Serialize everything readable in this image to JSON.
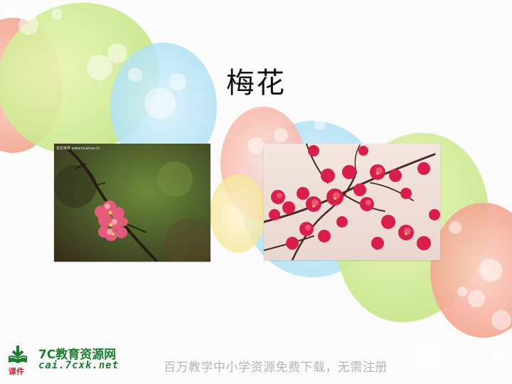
{
  "slide": {
    "title": "梅花"
  },
  "photos": {
    "left": {
      "stamp": "花花世界 www.huahua.cn"
    },
    "right": {}
  },
  "footer": {
    "brand_name": "7C教育资源网",
    "brand_sub": "课件",
    "brand_url": "cai.7cxk.net",
    "slogan": "百万教学中小学资源免费下载，无需注册"
  },
  "colors": {
    "brand_green": "#1a7e2e",
    "brand_red": "#d61f2a",
    "slogan_gray": "#b5b5b5",
    "blossom_pink": "#d81f4a"
  }
}
